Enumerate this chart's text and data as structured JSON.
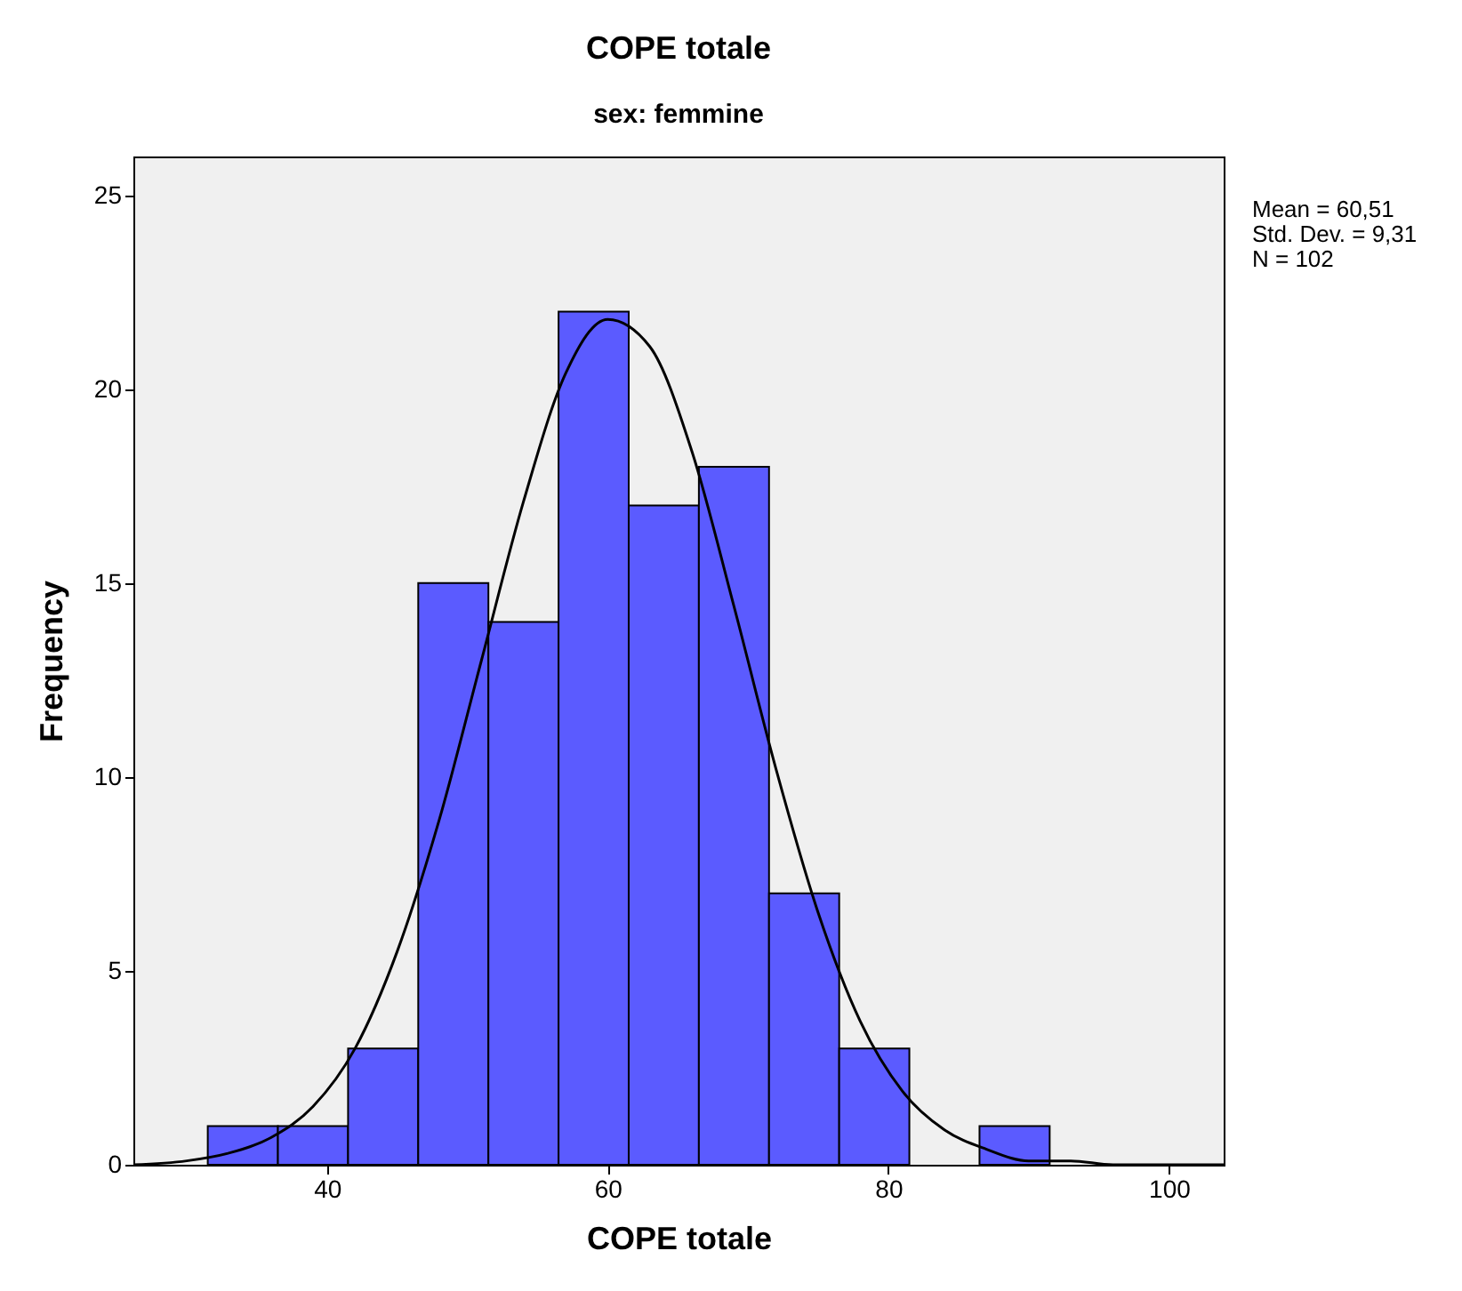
{
  "chart_data": {
    "type": "histogram",
    "title": "COPE totale",
    "subtitle": "sex: femmine",
    "xlabel": "COPE totale",
    "ylabel": "Frequency",
    "bins": [
      31.5,
      36.5,
      41.5,
      46.5,
      51.5,
      56.5,
      61.5,
      66.5,
      71.5,
      76.5,
      81.5,
      86.5,
      91.5
    ],
    "values": [
      1,
      1,
      3,
      15,
      14,
      22,
      17,
      18,
      7,
      3,
      0,
      1
    ],
    "color": "#5b5bff",
    "series": [
      {
        "type": "line",
        "color": "#000000",
        "x": [
          26.2,
          30,
          33,
          36,
          39,
          42,
          45,
          48,
          51,
          54,
          57,
          60,
          63,
          66,
          69,
          72,
          75,
          78,
          81,
          84,
          87,
          90,
          93,
          96,
          99,
          103.9
        ],
        "values": [
          0.0,
          0.1,
          0.3,
          0.7,
          1.5,
          3.0,
          5.5,
          8.9,
          13.0,
          17.1,
          20.4,
          21.8,
          21.1,
          18.4,
          14.4,
          10.2,
          6.5,
          3.7,
          1.9,
          0.9,
          0.4,
          0.1,
          0.1,
          0.0,
          0.0,
          0.0
        ]
      }
    ],
    "annotations": [
      "Mean = 60,51",
      "Std. Dev. = 9,31",
      "N = 102"
    ],
    "xlim": [
      26.2,
      103.9
    ],
    "xticks": [
      40,
      60,
      80,
      100
    ],
    "ylim": [
      0,
      26
    ],
    "yticks": [
      0,
      5,
      10,
      15,
      20,
      25
    ],
    "grid": false
  }
}
